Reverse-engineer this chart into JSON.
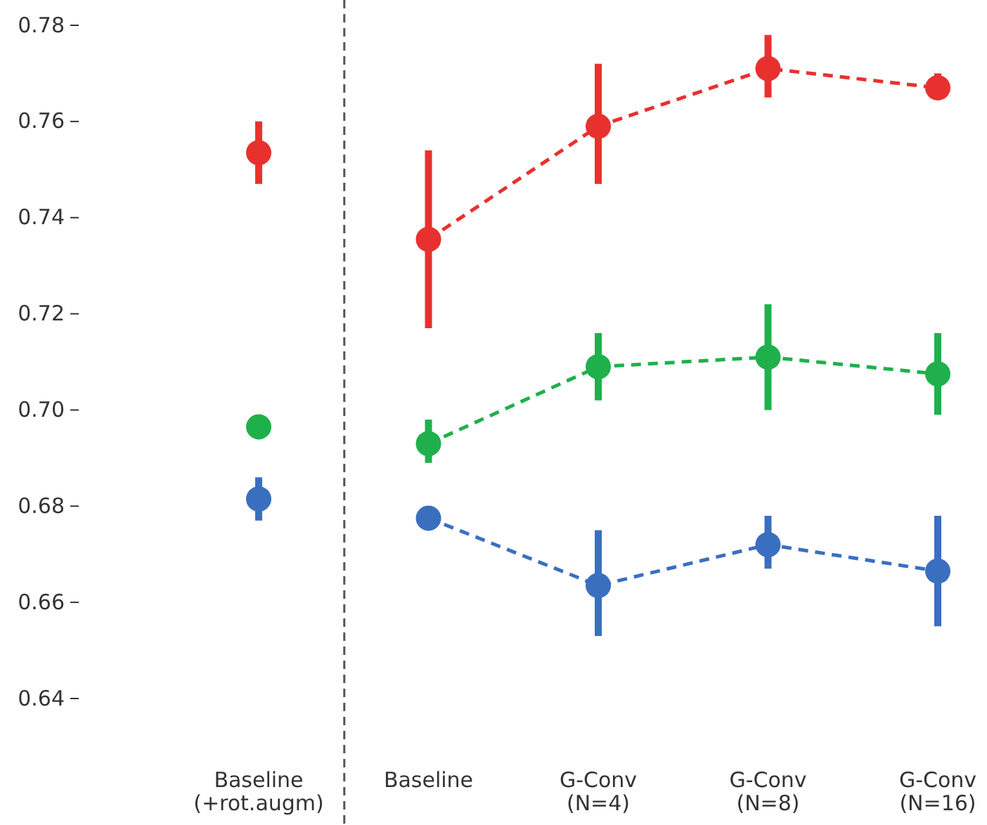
{
  "chart_data": {
    "type": "line",
    "categories": [
      "Baseline\n(+rot.augm)",
      "Baseline",
      "G-Conv\n(N=4)",
      "G-Conv\n(N=8)",
      "G-Conv\n(N=16)"
    ],
    "series": [
      {
        "type": "scatter",
        "color": "#e8312f",
        "values": [
          0.7535,
          null,
          null,
          null,
          null
        ],
        "errors": [
          [
            0.747,
            0.76
          ],
          null,
          null,
          null,
          null
        ]
      },
      {
        "type": "scatter",
        "color": "#1fb04c",
        "values": [
          0.6965,
          null,
          null,
          null,
          null
        ],
        "errors": [
          null,
          null,
          null,
          null,
          null
        ]
      },
      {
        "type": "scatter",
        "color": "#3a6fc0",
        "values": [
          0.6815,
          null,
          null,
          null,
          null
        ],
        "errors": [
          [
            0.677,
            0.686
          ],
          null,
          null,
          null,
          null
        ]
      },
      {
        "color": "#e8312f",
        "values": [
          null,
          0.7355,
          0.759,
          0.771,
          0.767
        ],
        "errors": [
          null,
          [
            0.717,
            0.754
          ],
          [
            0.747,
            0.772
          ],
          [
            0.765,
            0.778
          ],
          [
            0.765,
            0.77
          ]
        ]
      },
      {
        "color": "#1fb04c",
        "values": [
          null,
          0.693,
          0.709,
          0.711,
          0.7075
        ],
        "errors": [
          null,
          [
            0.689,
            0.698
          ],
          [
            0.702,
            0.716
          ],
          [
            0.7,
            0.722
          ],
          [
            0.699,
            0.716
          ]
        ]
      },
      {
        "color": "#3a6fc0",
        "values": [
          null,
          0.6775,
          0.6635,
          0.672,
          0.6665
        ],
        "errors": [
          null,
          null,
          [
            0.653,
            0.675
          ],
          [
            0.667,
            0.678
          ],
          [
            0.655,
            0.678
          ]
        ]
      }
    ],
    "ylim": [
      0.64,
      0.78
    ],
    "yticks": [
      {
        "value": 0.64,
        "label": "0.64"
      },
      {
        "value": 0.66,
        "label": "0.66"
      },
      {
        "value": 0.68,
        "label": "0.68"
      },
      {
        "value": 0.7,
        "label": "0.70"
      },
      {
        "value": 0.72,
        "label": "0.72"
      },
      {
        "value": 0.74,
        "label": "0.74"
      },
      {
        "value": 0.76,
        "label": "0.76"
      },
      {
        "value": 0.78,
        "label": "0.78"
      }
    ],
    "grid": false,
    "marker": "circle",
    "line_style": "dashed"
  }
}
